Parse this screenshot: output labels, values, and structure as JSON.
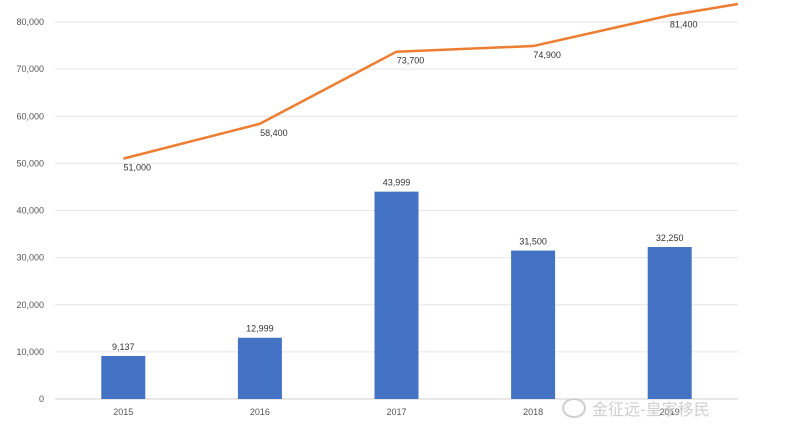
{
  "chart_data": {
    "type": "bar",
    "categories": [
      "2015",
      "2016",
      "2017",
      "2018",
      "2019"
    ],
    "ylim": [
      0,
      80000
    ],
    "yticks": [
      "0",
      "10,000",
      "20,000",
      "30,000",
      "40,000",
      "50,000",
      "60,000",
      "70,000",
      "80,000"
    ],
    "grid": true,
    "series": [
      {
        "type": "bar",
        "values": [
          9137,
          12999,
          43999,
          31500,
          32250
        ],
        "labels": [
          "9,137",
          "12,999",
          "43,999",
          "31,500",
          "32,250"
        ],
        "color": "#4472c4"
      },
      {
        "type": "line",
        "values": [
          51000,
          58400,
          73700,
          74900,
          81400
        ],
        "labels": [
          "51,000",
          "58,400",
          "73,700",
          "74,900",
          "81,400"
        ],
        "color": "#ed7d31"
      }
    ]
  },
  "watermark": {
    "text": "金征远-皇家移民",
    "icon": "weibo-icon"
  }
}
